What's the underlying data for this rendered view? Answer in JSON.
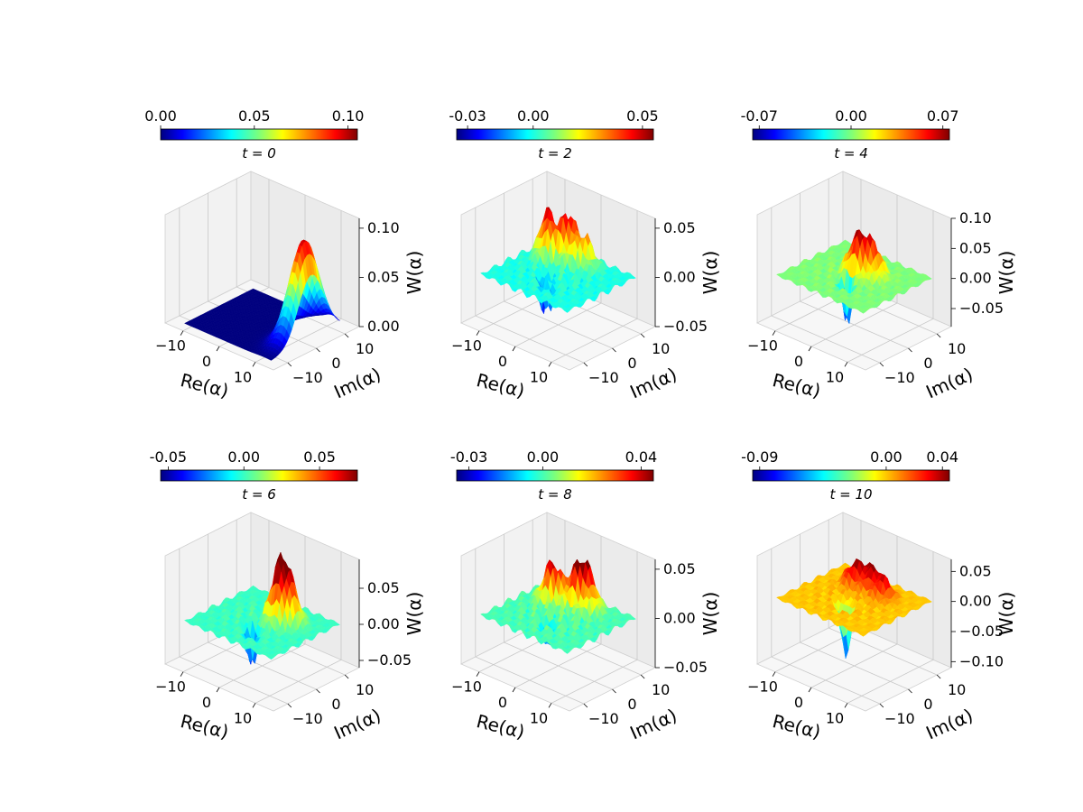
{
  "chart_data": [
    {
      "type": "surface3d",
      "title": "t = 0",
      "colorbar": {
        "ticks": [
          "0.00",
          "0.05",
          "0.10"
        ],
        "range": [
          0.0,
          0.105
        ]
      },
      "xlabel": "Re(α)",
      "ylabel": "Im(α)",
      "zlabel": "W(α)",
      "xticks": [
        "−10",
        "0",
        "10"
      ],
      "yticks": [
        "−10",
        "0",
        "10"
      ],
      "zticks": [
        "0.00",
        "0.05",
        "0.10"
      ],
      "zlim": [
        0.0,
        0.11
      ],
      "peaks": [
        {
          "re": 10,
          "im": 2,
          "w": 0.1
        }
      ],
      "dips": []
    },
    {
      "type": "surface3d",
      "title": "t = 2",
      "colorbar": {
        "ticks": [
          "-0.03",
          "0.00",
          "0.05"
        ],
        "range": [
          -0.035,
          0.055
        ]
      },
      "xlabel": "Re(α)",
      "ylabel": "Im(α)",
      "zlabel": "W(α)",
      "xticks": [
        "−10",
        "0",
        "10"
      ],
      "yticks": [
        "−10",
        "0",
        "10"
      ],
      "zticks": [
        "0.05",
        "0.00",
        "−0.05"
      ],
      "zlim": [
        -0.05,
        0.06
      ],
      "peaks": [
        {
          "re": -6,
          "im": 4,
          "w": 0.05
        },
        {
          "re": -2,
          "im": 6,
          "w": 0.045
        },
        {
          "re": 2,
          "im": 7,
          "w": 0.03
        }
      ],
      "dips": [
        {
          "re": -1,
          "im": -4,
          "w": -0.03
        },
        {
          "re": 2,
          "im": -6,
          "w": -0.025
        }
      ]
    },
    {
      "type": "surface3d",
      "title": "t = 4",
      "colorbar": {
        "ticks": [
          "-0.07",
          "0.00",
          "0.07"
        ],
        "range": [
          -0.075,
          0.075
        ]
      },
      "xlabel": "Re(α)",
      "ylabel": "Im(α)",
      "zlabel": "W(α)",
      "xticks": [
        "−10",
        "0",
        "10"
      ],
      "yticks": [
        "−10",
        "0",
        "10"
      ],
      "zticks": [
        "0.10",
        "0.05",
        "0.00",
        "−0.05"
      ],
      "zlim": [
        -0.08,
        0.1
      ],
      "peaks": [
        {
          "re": 0,
          "im": 1,
          "w": 0.07
        },
        {
          "re": 3,
          "im": 3,
          "w": 0.05
        }
      ],
      "dips": [
        {
          "re": 0,
          "im": -3,
          "w": -0.07
        },
        {
          "re": 2,
          "im": -5,
          "w": -0.06
        }
      ]
    },
    {
      "type": "surface3d",
      "title": "t = 6",
      "colorbar": {
        "ticks": [
          "-0.05",
          "0.00",
          "0.05"
        ],
        "range": [
          -0.055,
          0.075
        ]
      },
      "xlabel": "Re(α)",
      "ylabel": "Im(α)",
      "zlabel": "W(α)",
      "xticks": [
        "−10",
        "0",
        "10"
      ],
      "yticks": [
        "−10",
        "0",
        "10"
      ],
      "zticks": [
        "0.05",
        "0.00",
        "−0.05"
      ],
      "zlim": [
        -0.06,
        0.09
      ],
      "peaks": [
        {
          "re": 3,
          "im": 2,
          "w": 0.075
        },
        {
          "re": 5,
          "im": 4,
          "w": 0.05
        }
      ],
      "dips": [
        {
          "re": 0,
          "im": -4,
          "w": -0.05
        },
        {
          "re": 2,
          "im": -6,
          "w": -0.045
        }
      ]
    },
    {
      "type": "surface3d",
      "title": "t = 8",
      "colorbar": {
        "ticks": [
          "-0.03",
          "0.00",
          "0.04"
        ],
        "range": [
          -0.035,
          0.045
        ]
      },
      "xlabel": "Re(α)",
      "ylabel": "Im(α)",
      "zlabel": "W(α)",
      "xticks": [
        "−10",
        "0",
        "10"
      ],
      "yticks": [
        "−10",
        "0",
        "10"
      ],
      "zticks": [
        "0.05",
        "0.00",
        "−0.05"
      ],
      "zlim": [
        -0.05,
        0.06
      ],
      "peaks": [
        {
          "re": -5,
          "im": 4,
          "w": 0.045
        },
        {
          "re": 0,
          "im": 6,
          "w": 0.04
        },
        {
          "re": 3,
          "im": 7,
          "w": 0.035
        }
      ],
      "dips": [
        {
          "re": 1,
          "im": -5,
          "w": -0.03
        }
      ]
    },
    {
      "type": "surface3d",
      "title": "t = 10",
      "colorbar": {
        "ticks": [
          "-0.09",
          "0.00",
          "0.04"
        ],
        "range": [
          -0.095,
          0.045
        ]
      },
      "xlabel": "Re(α)",
      "ylabel": "Im(α)",
      "zlabel": "W(α)",
      "xticks": [
        "−10",
        "0",
        "10"
      ],
      "yticks": [
        "−10",
        "0",
        "10"
      ],
      "zticks": [
        "0.05",
        "0.00",
        "−0.05",
        "−0.10"
      ],
      "zlim": [
        -0.11,
        0.07
      ],
      "peaks": [
        {
          "re": -4,
          "im": 5,
          "w": 0.04
        },
        {
          "re": 0,
          "im": 6,
          "w": 0.04
        },
        {
          "re": 4,
          "im": 5,
          "w": 0.035
        }
      ],
      "dips": [
        {
          "re": 1,
          "im": -4,
          "w": -0.09
        },
        {
          "re": -1,
          "im": -3,
          "w": -0.05
        }
      ]
    }
  ]
}
